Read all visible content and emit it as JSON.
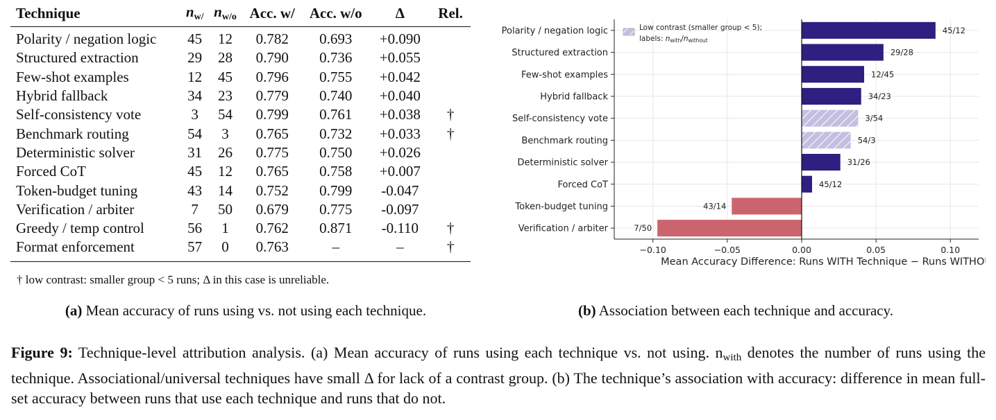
{
  "table": {
    "headers": {
      "technique": "Technique",
      "n_with": "n",
      "n_with_sub": "w/",
      "n_without": "n",
      "n_without_sub": "w/o",
      "acc_with": "Acc. w/",
      "acc_without": "Acc. w/o",
      "delta": "Δ",
      "rel": "Rel."
    },
    "rows": [
      {
        "technique": "Polarity / negation logic",
        "n_with": "45",
        "n_without": "12",
        "acc_with": "0.782",
        "acc_without": "0.693",
        "delta": "+0.090",
        "rel": ""
      },
      {
        "technique": "Structured extraction",
        "n_with": "29",
        "n_without": "28",
        "acc_with": "0.790",
        "acc_without": "0.736",
        "delta": "+0.055",
        "rel": ""
      },
      {
        "technique": "Few-shot examples",
        "n_with": "12",
        "n_without": "45",
        "acc_with": "0.796",
        "acc_without": "0.755",
        "delta": "+0.042",
        "rel": ""
      },
      {
        "technique": "Hybrid fallback",
        "n_with": "34",
        "n_without": "23",
        "acc_with": "0.779",
        "acc_without": "0.740",
        "delta": "+0.040",
        "rel": ""
      },
      {
        "technique": "Self-consistency vote",
        "n_with": "3",
        "n_without": "54",
        "acc_with": "0.799",
        "acc_without": "0.761",
        "delta": "+0.038",
        "rel": "†"
      },
      {
        "technique": "Benchmark routing",
        "n_with": "54",
        "n_without": "3",
        "acc_with": "0.765",
        "acc_without": "0.732",
        "delta": "+0.033",
        "rel": "†"
      },
      {
        "technique": "Deterministic solver",
        "n_with": "31",
        "n_without": "26",
        "acc_with": "0.775",
        "acc_without": "0.750",
        "delta": "+0.026",
        "rel": ""
      },
      {
        "technique": "Forced CoT",
        "n_with": "45",
        "n_without": "12",
        "acc_with": "0.765",
        "acc_without": "0.758",
        "delta": "+0.007",
        "rel": ""
      },
      {
        "technique": "Token-budget tuning",
        "n_with": "43",
        "n_without": "14",
        "acc_with": "0.752",
        "acc_without": "0.799",
        "delta": "-0.047",
        "rel": ""
      },
      {
        "technique": "Verification / arbiter",
        "n_with": "7",
        "n_without": "50",
        "acc_with": "0.679",
        "acc_without": "0.775",
        "delta": "-0.097",
        "rel": ""
      },
      {
        "technique": "Greedy / temp control",
        "n_with": "56",
        "n_without": "1",
        "acc_with": "0.762",
        "acc_without": "0.871",
        "delta": "-0.110",
        "rel": "†"
      },
      {
        "technique": "Format enforcement",
        "n_with": "57",
        "n_without": "0",
        "acc_with": "0.763",
        "acc_without": "–",
        "delta": "–",
        "rel": "†"
      }
    ],
    "footnote": "† low contrast: smaller group < 5 runs; Δ in this case is unreliable."
  },
  "caption_a": {
    "label": "(a)",
    "text": " Mean accuracy of runs using vs. not using each technique."
  },
  "caption_b": {
    "label": "(b)",
    "text": " Association between each technique and accuracy."
  },
  "figure_caption": {
    "label": "Figure 9:",
    "text": " Technique-level attribution analysis. (a) Mean accuracy of runs using each technique vs. not using. n",
    "sub": "with",
    "text2": " denotes the number of runs using the technique. Associational/universal techniques have small Δ for lack of a contrast group. (b) The technique’s association with accuracy: difference in mean full-set accuracy between runs that use each technique and runs that do not."
  },
  "colors": {
    "positive": "#2e1f80",
    "negative": "#cc6470",
    "low_contrast": "#c4bfe0",
    "hatch": "#ffffff",
    "grid": "#e6e6e6"
  },
  "chart_data": {
    "type": "bar",
    "orientation": "horizontal",
    "categories": [
      "Polarity / negation logic",
      "Structured extraction",
      "Few-shot examples",
      "Hybrid fallback",
      "Self-consistency vote",
      "Benchmark routing",
      "Deterministic solver",
      "Forced CoT",
      "Token-budget tuning",
      "Verification / arbiter"
    ],
    "values": [
      0.09,
      0.055,
      0.042,
      0.04,
      0.038,
      0.033,
      0.026,
      0.007,
      -0.047,
      -0.097
    ],
    "bar_labels": [
      "45/12",
      "29/28",
      "12/45",
      "34/23",
      "3/54",
      "54/3",
      "31/26",
      "45/12",
      "43/14",
      "7/50"
    ],
    "low_contrast": [
      false,
      false,
      false,
      false,
      true,
      true,
      false,
      false,
      false,
      false
    ],
    "xlabel": "Mean Accuracy Difference: Runs WITH Technique − Runs WITHOUT",
    "xlim": [
      -0.126,
      0.119
    ],
    "xticks": [
      -0.1,
      -0.05,
      0.0,
      0.05,
      0.1
    ],
    "xtick_labels": [
      "−0.10",
      "−0.05",
      "0.00",
      "0.05",
      "0.10"
    ],
    "grid": true,
    "legend": {
      "placement": "top-left",
      "line1": "Low contrast (smaller group  < 5);",
      "line2_prefix": "labels: ",
      "n": "n",
      "with_sub": "with",
      "slash": "/",
      "without_sub": "without"
    }
  }
}
